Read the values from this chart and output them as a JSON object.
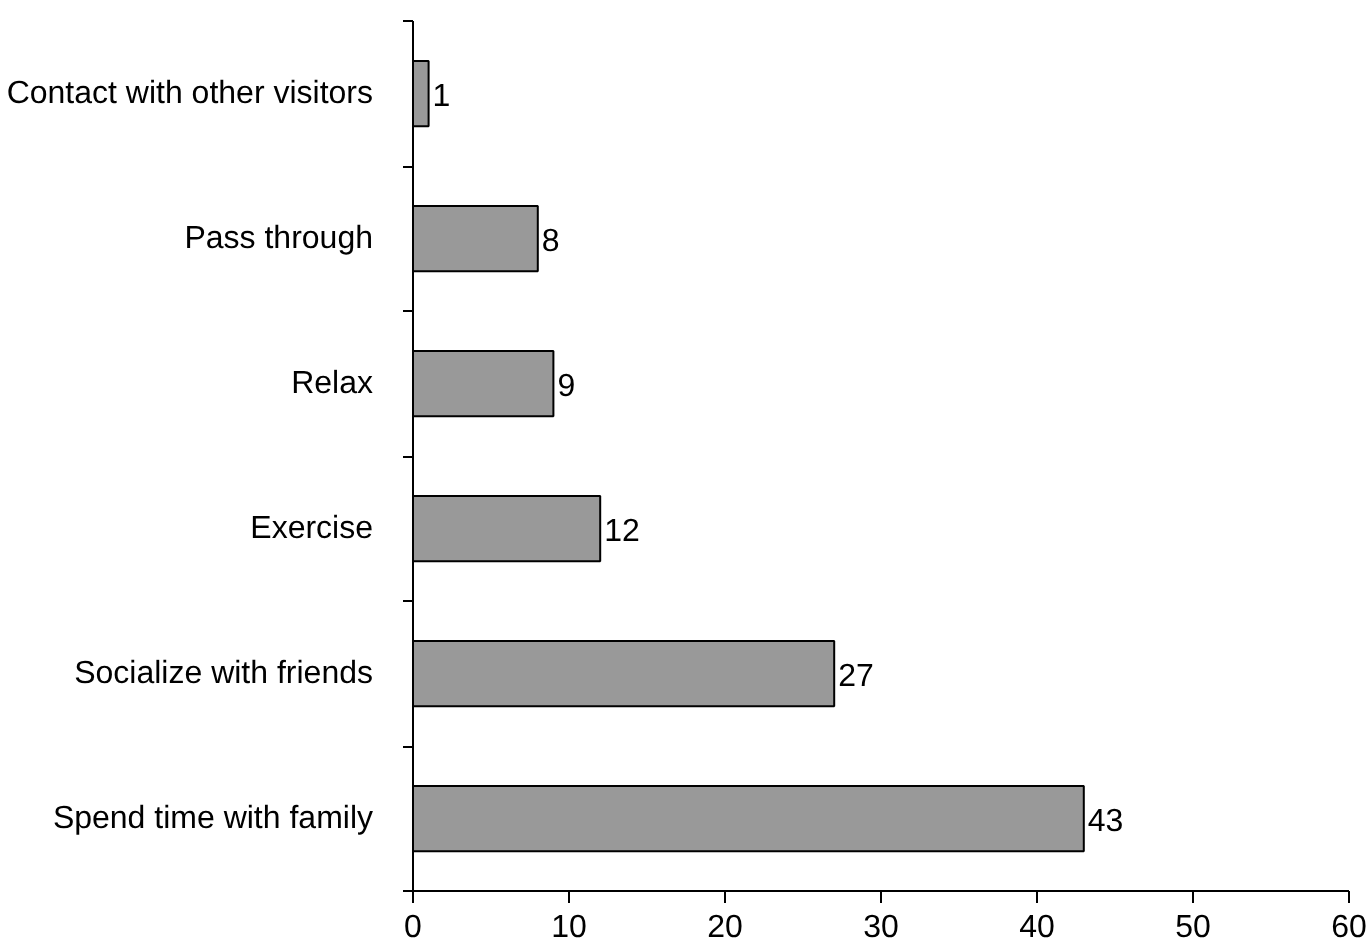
{
  "chart_data": {
    "type": "bar",
    "orientation": "horizontal",
    "categories": [
      "Contact with other visitors",
      "Pass through",
      "Relax",
      "Exercise",
      "Socialize with friends",
      "Spend time with family"
    ],
    "values": [
      1,
      8,
      9,
      12,
      27,
      43
    ],
    "color": "#999999",
    "xlim": [
      0,
      60
    ],
    "xticks": [
      0,
      10,
      20,
      30,
      40,
      50,
      60
    ],
    "grid": false,
    "data_labels": true
  }
}
